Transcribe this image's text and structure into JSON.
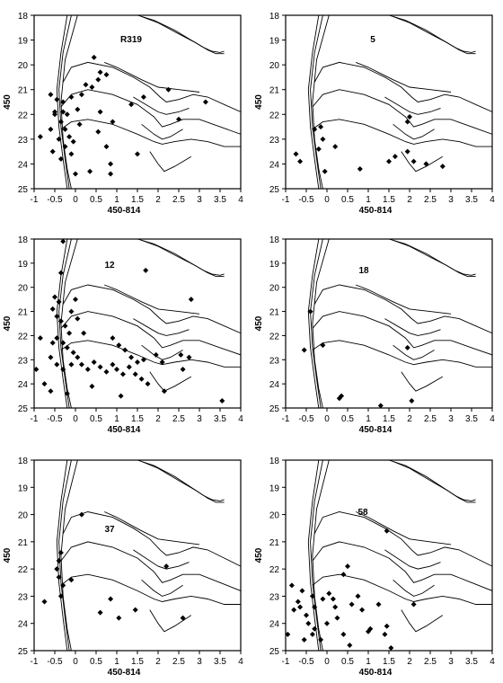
{
  "figure": {
    "grid": false,
    "background": "#ffffff",
    "marker": "diamond",
    "ink_color": "#000000"
  },
  "chart_data": [
    {
      "type": "scatter",
      "title": "R319",
      "xlabel": "450-814",
      "ylabel": "450",
      "xlim": [
        -1,
        4
      ],
      "ylim": [
        25,
        18
      ],
      "y_inverted": true,
      "xticks": [
        "-1",
        "-0.5",
        "0",
        "0.5",
        "1",
        "1.5",
        "2",
        "2.5",
        "3",
        "3.5",
        "4"
      ],
      "yticks": [
        "18",
        "19",
        "20",
        "21",
        "22",
        "23",
        "24",
        "25"
      ],
      "points": [
        [
          -0.6,
          21.2
        ],
        [
          -0.45,
          21.4
        ],
        [
          -0.3,
          21.5
        ],
        [
          -0.1,
          21.3
        ],
        [
          0.05,
          21.8
        ],
        [
          -0.5,
          22.0
        ],
        [
          -0.35,
          22.3
        ],
        [
          -0.25,
          22.6
        ],
        [
          -0.15,
          22.9
        ],
        [
          -0.05,
          23.1
        ],
        [
          -0.4,
          23.0
        ],
        [
          -0.25,
          23.3
        ],
        [
          -0.55,
          23.5
        ],
        [
          -0.85,
          22.9
        ],
        [
          -0.6,
          22.6
        ],
        [
          -0.5,
          21.9
        ],
        [
          -0.3,
          21.9
        ],
        [
          -0.2,
          22.0
        ],
        [
          0.1,
          22.4
        ],
        [
          -0.1,
          23.6
        ],
        [
          -0.35,
          23.8
        ],
        [
          0.0,
          24.4
        ],
        [
          0.45,
          19.7
        ],
        [
          0.6,
          20.3
        ],
        [
          0.75,
          20.4
        ],
        [
          0.55,
          20.6
        ],
        [
          0.4,
          20.9
        ],
        [
          0.15,
          21.2
        ],
        [
          0.25,
          20.8
        ],
        [
          0.6,
          21.9
        ],
        [
          0.55,
          22.7
        ],
        [
          0.9,
          22.3
        ],
        [
          0.75,
          23.3
        ],
        [
          0.85,
          24.0
        ],
        [
          0.85,
          24.4
        ],
        [
          0.35,
          24.3
        ],
        [
          1.65,
          21.3
        ],
        [
          1.35,
          21.6
        ],
        [
          2.25,
          21.0
        ],
        [
          2.5,
          22.2
        ],
        [
          3.15,
          21.5
        ],
        [
          1.5,
          23.6
        ]
      ]
    },
    {
      "type": "scatter",
      "title": "5",
      "xlabel": "450-814",
      "ylabel": "450",
      "xlim": [
        -1,
        4
      ],
      "ylim": [
        25,
        18
      ],
      "y_inverted": true,
      "xticks": [
        "-1",
        "-0.5",
        "0",
        "0.5",
        "1",
        "1.5",
        "2",
        "2.5",
        "3",
        "3.5",
        "4"
      ],
      "yticks": [
        "18",
        "19",
        "20",
        "21",
        "22",
        "23",
        "24",
        "25"
      ],
      "points": [
        [
          -0.3,
          22.6
        ],
        [
          -0.15,
          22.5
        ],
        [
          -0.1,
          23.0
        ],
        [
          -0.2,
          23.4
        ],
        [
          -0.75,
          23.6
        ],
        [
          -0.65,
          23.9
        ],
        [
          -0.05,
          24.3
        ],
        [
          0.2,
          23.3
        ],
        [
          0.8,
          24.2
        ],
        [
          1.5,
          23.9
        ],
        [
          1.65,
          23.7
        ],
        [
          1.95,
          23.5
        ],
        [
          2.1,
          23.9
        ],
        [
          2.4,
          24.0
        ],
        [
          2.8,
          24.1
        ],
        [
          1.95,
          22.3
        ],
        [
          2.0,
          22.1
        ]
      ]
    },
    {
      "type": "scatter",
      "title": "12",
      "xlabel": "450-814",
      "ylabel": "450",
      "xlim": [
        -1,
        4
      ],
      "ylim": [
        25,
        18
      ],
      "y_inverted": true,
      "xticks": [
        "-1",
        "-0.5",
        "0",
        "0.5",
        "1",
        "1.5",
        "2",
        "2.5",
        "3",
        "3.5",
        "4"
      ],
      "yticks": [
        "18",
        "19",
        "20",
        "21",
        "22",
        "23",
        "24",
        "25"
      ],
      "points": [
        [
          -0.3,
          18.1
        ],
        [
          -0.35,
          19.4
        ],
        [
          -0.5,
          20.4
        ],
        [
          -0.4,
          20.6
        ],
        [
          -0.55,
          20.9
        ],
        [
          -0.45,
          21.2
        ],
        [
          -0.35,
          21.4
        ],
        [
          -0.25,
          21.6
        ],
        [
          -0.15,
          21.9
        ],
        [
          -0.45,
          22.1
        ],
        [
          -0.3,
          22.3
        ],
        [
          -0.2,
          22.5
        ],
        [
          -0.05,
          22.7
        ],
        [
          -0.55,
          22.3
        ],
        [
          -0.6,
          22.9
        ],
        [
          -0.45,
          23.2
        ],
        [
          -0.3,
          23.4
        ],
        [
          -0.1,
          23.2
        ],
        [
          0.05,
          22.9
        ],
        [
          0.15,
          23.2
        ],
        [
          0.3,
          23.4
        ],
        [
          0.45,
          23.1
        ],
        [
          0.6,
          23.3
        ],
        [
          0.75,
          23.5
        ],
        [
          0.9,
          23.2
        ],
        [
          1.0,
          23.4
        ],
        [
          1.15,
          23.6
        ],
        [
          1.3,
          23.3
        ],
        [
          1.45,
          23.6
        ],
        [
          1.6,
          23.8
        ],
        [
          1.75,
          24.0
        ],
        [
          1.5,
          23.1
        ],
        [
          1.35,
          22.9
        ],
        [
          1.2,
          22.6
        ],
        [
          1.05,
          22.4
        ],
        [
          0.9,
          22.1
        ],
        [
          0.2,
          21.9
        ],
        [
          0.05,
          21.3
        ],
        [
          -0.1,
          21.0
        ],
        [
          0.0,
          20.5
        ],
        [
          -0.85,
          22.1
        ],
        [
          -0.95,
          23.4
        ],
        [
          -0.75,
          24.0
        ],
        [
          -0.6,
          24.3
        ],
        [
          -0.2,
          24.4
        ],
        [
          0.4,
          24.1
        ],
        [
          1.1,
          24.5
        ],
        [
          1.65,
          23.0
        ],
        [
          1.95,
          22.8
        ],
        [
          2.1,
          23.1
        ],
        [
          2.55,
          22.8
        ],
        [
          2.75,
          22.9
        ],
        [
          2.6,
          23.4
        ],
        [
          2.8,
          20.5
        ],
        [
          2.15,
          24.3
        ],
        [
          3.55,
          24.7
        ],
        [
          1.7,
          19.3
        ]
      ]
    },
    {
      "type": "scatter",
      "title": "18",
      "xlabel": "450-814",
      "ylabel": "450",
      "xlim": [
        -1,
        4
      ],
      "ylim": [
        25,
        18
      ],
      "y_inverted": true,
      "xticks": [
        "-1",
        "-0.5",
        "0",
        "0.5",
        "1",
        "1.5",
        "2",
        "2.5",
        "3",
        "3.5",
        "4"
      ],
      "yticks": [
        "18",
        "19",
        "20",
        "21",
        "22",
        "23",
        "24",
        "25"
      ],
      "points": [
        [
          -0.4,
          21.0
        ],
        [
          -0.55,
          22.6
        ],
        [
          -0.1,
          22.4
        ],
        [
          0.3,
          24.6
        ],
        [
          0.35,
          24.5
        ],
        [
          1.3,
          24.9
        ],
        [
          2.05,
          24.7
        ],
        [
          1.95,
          22.5
        ]
      ]
    },
    {
      "type": "scatter",
      "title": "37",
      "xlabel": "450-814",
      "ylabel": "450",
      "xlim": [
        -1,
        4
      ],
      "ylim": [
        25,
        18
      ],
      "y_inverted": true,
      "xticks": [
        "-1",
        "-0.5",
        "0",
        "0.5",
        "1",
        "1.5",
        "2",
        "2.5",
        "3",
        "3.5",
        "4"
      ],
      "yticks": [
        "18",
        "19",
        "20",
        "21",
        "22",
        "23",
        "24",
        "25"
      ],
      "points": [
        [
          0.15,
          20.0
        ],
        [
          -0.35,
          21.4
        ],
        [
          -0.4,
          21.7
        ],
        [
          -0.45,
          22.0
        ],
        [
          -0.4,
          22.3
        ],
        [
          -0.3,
          22.6
        ],
        [
          -0.35,
          23.0
        ],
        [
          -0.1,
          22.4
        ],
        [
          -0.75,
          23.2
        ],
        [
          0.85,
          23.1
        ],
        [
          1.45,
          23.5
        ],
        [
          0.6,
          23.6
        ],
        [
          1.05,
          23.8
        ],
        [
          2.2,
          21.9
        ],
        [
          2.6,
          23.8
        ]
      ]
    },
    {
      "type": "scatter",
      "title": "58",
      "xlabel": "450-814",
      "ylabel": "450",
      "xlim": [
        -1,
        4
      ],
      "ylim": [
        25,
        18
      ],
      "y_inverted": true,
      "xticks": [
        "-1",
        "-0.5",
        "0",
        "0.5",
        "1",
        "1.5",
        "2",
        "2.5",
        "3",
        "3.5",
        "4"
      ],
      "yticks": [
        "18",
        "19",
        "20",
        "21",
        "22",
        "23",
        "24",
        "25"
      ],
      "points": [
        [
          -0.85,
          22.6
        ],
        [
          -0.6,
          22.8
        ],
        [
          -0.7,
          23.2
        ],
        [
          -0.8,
          23.5
        ],
        [
          -0.65,
          23.4
        ],
        [
          -0.5,
          23.7
        ],
        [
          -0.35,
          23.0
        ],
        [
          -0.3,
          23.4
        ],
        [
          -0.45,
          24.0
        ],
        [
          -0.3,
          24.2
        ],
        [
          -0.95,
          24.4
        ],
        [
          -0.55,
          24.6
        ],
        [
          -0.35,
          24.4
        ],
        [
          -0.15,
          24.6
        ],
        [
          -0.1,
          23.1
        ],
        [
          0.05,
          22.9
        ],
        [
          0.15,
          23.1
        ],
        [
          0.2,
          23.4
        ],
        [
          0.4,
          22.2
        ],
        [
          0.75,
          23.0
        ],
        [
          0.6,
          23.3
        ],
        [
          0.85,
          23.5
        ],
        [
          0.25,
          23.8
        ],
        [
          0.0,
          24.0
        ],
        [
          0.4,
          24.4
        ],
        [
          0.55,
          24.8
        ],
        [
          1.0,
          24.3
        ],
        [
          1.25,
          23.3
        ],
        [
          1.05,
          24.2
        ],
        [
          1.4,
          24.4
        ],
        [
          1.45,
          24.1
        ],
        [
          1.55,
          24.9
        ],
        [
          2.1,
          23.3
        ],
        [
          1.45,
          20.6
        ],
        [
          0.5,
          21.9
        ]
      ]
    }
  ]
}
